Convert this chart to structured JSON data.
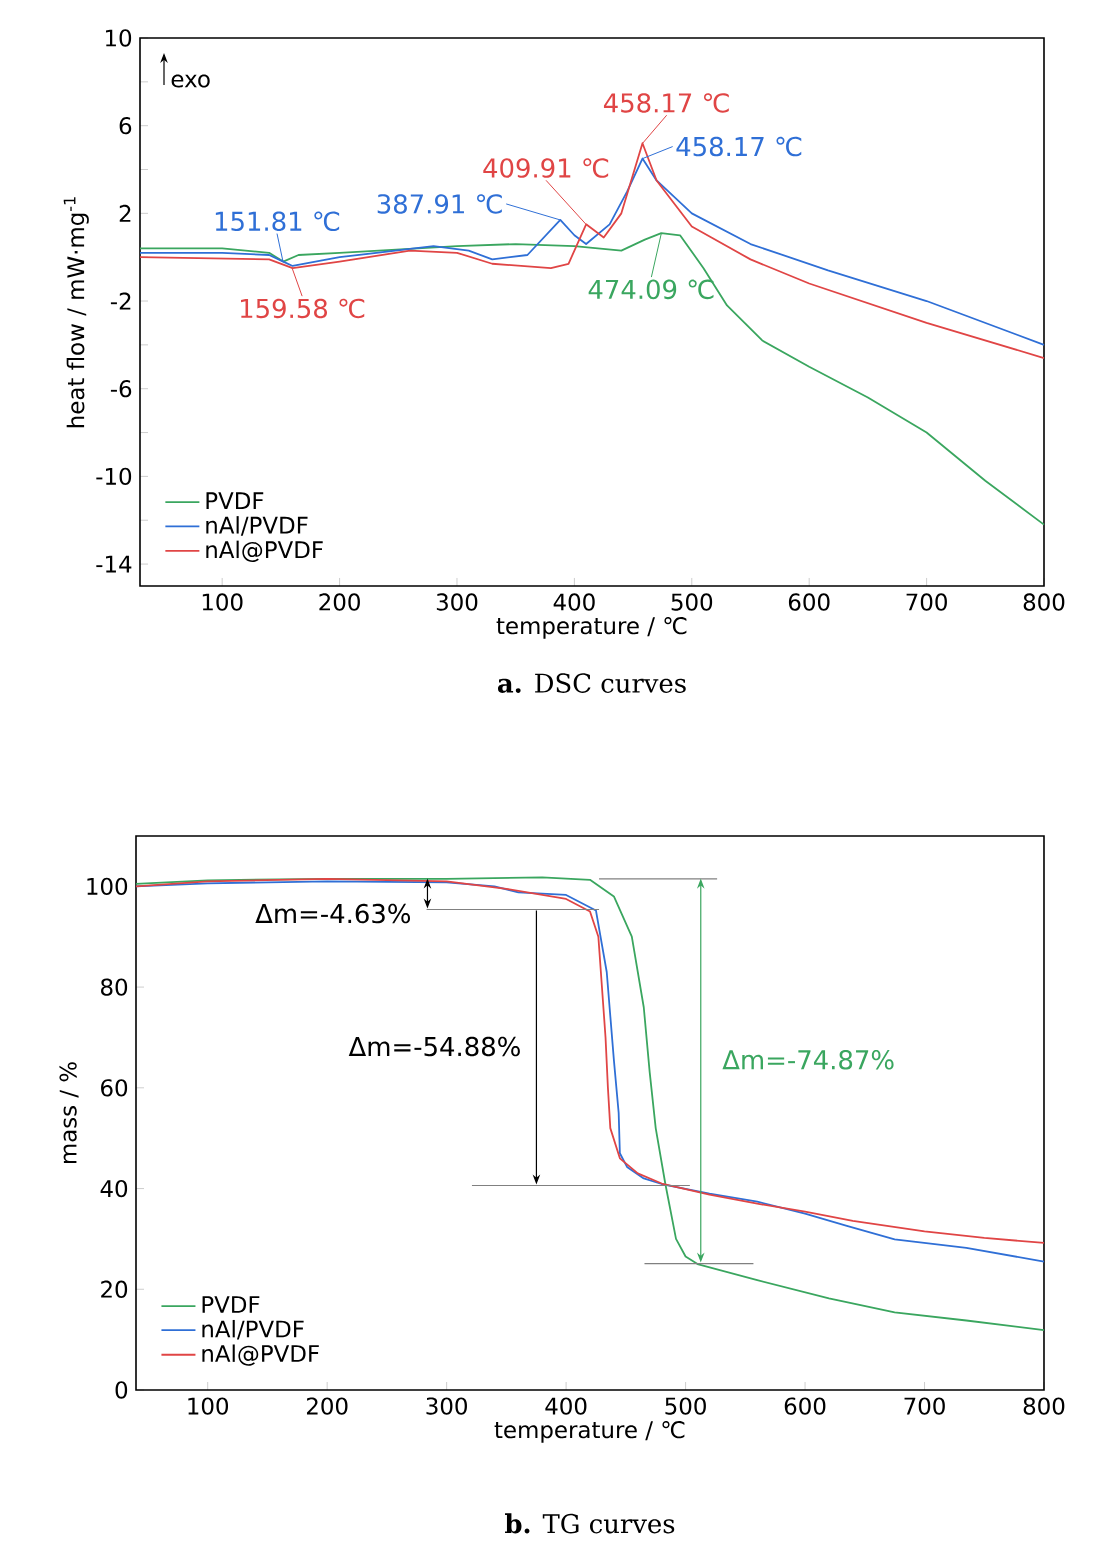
{
  "chart_data": [
    {
      "type": "line",
      "title": "**a.** DSC curves",
      "xlabel": "temperature / ℃",
      "ylabel": "heat flow / mW·mg$^{-1}$",
      "xlim": [
        30,
        800
      ],
      "ylim": [
        -15,
        10
      ],
      "xticks": [
        100,
        200,
        300,
        400,
        500,
        600,
        700,
        800
      ],
      "yticks": [
        -14,
        {
          "value": -12,
          "label": null
        },
        -10,
        {
          "value": -8,
          "label": null
        },
        -6,
        {
          "value": -4,
          "label": null
        },
        -2,
        {
          "value": 0,
          "label": null
        },
        2,
        {
          "value": 4,
          "label": null
        },
        6,
        {
          "value": 8,
          "label": null
        },
        10
      ],
      "legend": "bottom left",
      "series": [
        {
          "name": "PVDF",
          "color": "#3aa65f",
          "x": [
            30,
            100,
            140,
            152,
            165,
            200,
            300,
            350,
            400,
            440,
            460,
            474,
            490,
            510,
            530,
            560,
            600,
            650,
            700,
            750,
            800
          ],
          "values": [
            0.4,
            0.4,
            0.2,
            -0.2,
            0.1,
            0.2,
            0.5,
            0.6,
            0.5,
            0.3,
            0.8,
            1.1,
            1.0,
            -0.5,
            -2.2,
            -3.8,
            -5.0,
            -6.4,
            -8.0,
            -10.2,
            -12.2
          ]
        },
        {
          "name": "nAl/PVDF",
          "color": "#2f6fd6",
          "x": [
            30,
            100,
            140,
            152,
            160,
            200,
            280,
            310,
            330,
            360,
            388,
            400,
            410,
            430,
            445,
            458,
            470,
            500,
            550,
            616,
            700,
            800
          ],
          "values": [
            0.2,
            0.2,
            0.1,
            -0.2,
            -0.4,
            0.0,
            0.5,
            0.3,
            -0.1,
            0.1,
            1.7,
            1.0,
            0.6,
            1.5,
            3.0,
            4.5,
            3.5,
            2.0,
            0.6,
            -0.6,
            -2.0,
            -4.0
          ]
        },
        {
          "name": "nAl@PVDF",
          "color": "#e04545",
          "x": [
            30,
            140,
            160,
            200,
            260,
            300,
            330,
            380,
            395,
            410,
            425,
            440,
            458,
            470,
            500,
            550,
            600,
            700,
            800
          ],
          "values": [
            0.0,
            -0.1,
            -0.5,
            -0.2,
            0.3,
            0.2,
            -0.3,
            -0.5,
            -0.3,
            1.5,
            0.9,
            2.0,
            5.2,
            3.5,
            1.4,
            -0.1,
            -1.2,
            -3.0,
            -4.6
          ]
        }
      ],
      "annotations": [
        "exo",
        {
          "text": "151.81 ℃",
          "x": 151.81,
          "y": -0.2
        },
        {
          "text": "159.58 ℃",
          "x": 159.58,
          "y": -0.5
        },
        {
          "text": "387.91 ℃",
          "x": 387.91,
          "y": 1.7
        },
        {
          "text": "409.91 ℃",
          "x": 409.91,
          "y": 1.5
        },
        {
          "text": "458.17 ℃",
          "x": 458.17,
          "y": 5.2
        },
        {
          "text": "458.17 ℃",
          "x": 458.17,
          "y": 4.5
        },
        {
          "text": "474.09 ℃",
          "x": 474.09,
          "y": 1.1
        }
      ]
    },
    {
      "type": "line",
      "title": "**b.** TG curves",
      "xlabel": "temperature / ℃",
      "ylabel": "mass / %",
      "xlim": [
        40,
        800
      ],
      "ylim": [
        0,
        110
      ],
      "xticks": [
        100,
        200,
        300,
        400,
        500,
        600,
        700,
        800
      ],
      "yticks": [
        0,
        20,
        40,
        60,
        80,
        100
      ],
      "legend": "bottom left",
      "series": [
        {
          "name": "PVDF",
          "color": "#3aa65f",
          "x": [
            40,
            100,
            200,
            300,
            380,
            420,
            440,
            455,
            465,
            470,
            475,
            483,
            492,
            500,
            510,
            560,
            620,
            675,
            735,
            800
          ],
          "values": [
            100.5,
            101.2,
            101.5,
            101.5,
            101.8,
            101.3,
            98,
            90,
            76,
            63,
            52,
            41,
            30,
            26.5,
            25,
            21.8,
            18.2,
            15.4,
            13.8,
            11.9
          ]
        },
        {
          "name": "nAl/PVDF",
          "color": "#2f6fd6",
          "x": [
            40,
            100,
            200,
            300,
            340,
            360,
            400,
            425,
            434,
            440,
            444,
            445,
            451,
            465,
            480,
            520,
            560,
            600,
            635,
            675,
            735,
            800
          ],
          "values": [
            100,
            100.6,
            101,
            100.8,
            100,
            98.8,
            98.3,
            95.2,
            83,
            65.5,
            55,
            47,
            44.3,
            42,
            40.9,
            39,
            37.4,
            35,
            32.6,
            29.9,
            28.2,
            25.5
          ]
        },
        {
          "name": "nAl@PVDF",
          "color": "#e04545",
          "x": [
            40,
            100,
            200,
            300,
            350,
            400,
            420,
            427,
            430,
            433,
            435,
            437,
            445,
            460,
            480,
            520,
            560,
            600,
            640,
            700,
            750,
            800
          ],
          "values": [
            100,
            101,
            101.5,
            101,
            99.5,
            97.5,
            95,
            90,
            80,
            70,
            60,
            52,
            46,
            43,
            41,
            38.8,
            37,
            35.4,
            33.6,
            31.5,
            30.2,
            29.2
          ]
        }
      ],
      "ref_lines": [
        {
          "axis": "y",
          "value": 101.5,
          "color": "#808080"
        },
        {
          "axis": "y",
          "value": 95.4,
          "color": "#808080"
        },
        {
          "axis": "y",
          "value": 40.6,
          "color": "#808080"
        },
        {
          "axis": "y",
          "value": 25.1,
          "color": "#808080"
        }
      ],
      "annotations": [
        "Δm=-4.63%",
        "Δm=-54.88%",
        "Δm=-74.87%"
      ]
    }
  ]
}
